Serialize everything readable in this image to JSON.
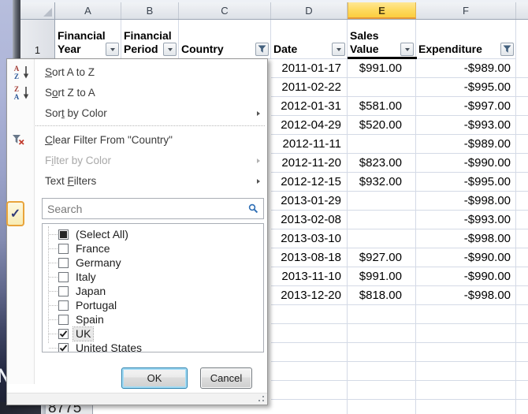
{
  "desktop_letter": "N",
  "side_check_button": {
    "glyph": "✓"
  },
  "sheet": {
    "column_letters": [
      "A",
      "B",
      "C",
      "D",
      "E",
      "F"
    ],
    "selected_column": "E",
    "row1_number": "1",
    "background_row_number": "8775",
    "headers": [
      {
        "col": "A",
        "label_lines": [
          "Financial",
          "Year"
        ],
        "filter": "dropdown"
      },
      {
        "col": "B",
        "label_lines": [
          "Financial",
          "Period"
        ],
        "filter": "dropdown"
      },
      {
        "col": "C",
        "label_lines": [
          "Country"
        ],
        "filter": "filtered"
      },
      {
        "col": "D",
        "label_lines": [
          "Date"
        ],
        "filter": "dropdown"
      },
      {
        "col": "E",
        "label_lines": [
          "Sales",
          "Value"
        ],
        "filter": "dropdown"
      },
      {
        "col": "F",
        "label_lines": [
          "Expenditure"
        ],
        "filter": "filtered"
      }
    ],
    "rows": [
      {
        "date": "2011-01-17",
        "sales": "$991.00",
        "expenditure": "-$989.00"
      },
      {
        "date": "2011-02-22",
        "sales": "",
        "expenditure": "-$995.00"
      },
      {
        "date": "2012-01-31",
        "sales": "$581.00",
        "expenditure": "-$997.00"
      },
      {
        "date": "2012-04-29",
        "sales": "$520.00",
        "expenditure": "-$993.00"
      },
      {
        "date": "2012-11-11",
        "sales": "",
        "expenditure": "-$989.00"
      },
      {
        "date": "2012-11-20",
        "sales": "$823.00",
        "expenditure": "-$990.00"
      },
      {
        "date": "2012-12-15",
        "sales": "$932.00",
        "expenditure": "-$995.00"
      },
      {
        "date": "2013-01-29",
        "sales": "",
        "expenditure": "-$998.00"
      },
      {
        "date": "2013-02-08",
        "sales": "",
        "expenditure": "-$993.00"
      },
      {
        "date": "2013-03-10",
        "sales": "",
        "expenditure": "-$998.00"
      },
      {
        "date": "2013-08-18",
        "sales": "$927.00",
        "expenditure": "-$990.00"
      },
      {
        "date": "2013-11-10",
        "sales": "$991.00",
        "expenditure": "-$990.00"
      },
      {
        "date": "2013-12-20",
        "sales": "$818.00",
        "expenditure": "-$998.00"
      }
    ]
  },
  "filter_menu": {
    "items": [
      {
        "id": "sort-a-to-z",
        "pre": "",
        "key": "S",
        "post": "ort A to Z",
        "icon": "sort-az",
        "enabled": true,
        "submenu": false
      },
      {
        "id": "sort-z-to-a",
        "pre": "S",
        "key": "o",
        "post": "rt Z to A",
        "icon": "sort-za",
        "enabled": true,
        "submenu": false
      },
      {
        "id": "sort-by-color",
        "pre": "Sor",
        "key": "t",
        "post": " by Color",
        "icon": null,
        "enabled": true,
        "submenu": true
      },
      {
        "id": "clear-filter",
        "pre": "",
        "key": "C",
        "post": "lear Filter From \"Country\"",
        "icon": "clear-filter",
        "enabled": true,
        "submenu": false
      },
      {
        "id": "filter-by-color",
        "pre": "F",
        "key": "i",
        "post": "lter by Color",
        "icon": null,
        "enabled": false,
        "submenu": true
      },
      {
        "id": "text-filters",
        "pre": "Text ",
        "key": "F",
        "post": "ilters",
        "icon": null,
        "enabled": true,
        "submenu": true
      }
    ],
    "search_placeholder": "Search",
    "values": [
      {
        "label": "(Select All)",
        "state": "indeterminate",
        "focused": false
      },
      {
        "label": "France",
        "state": "unchecked",
        "focused": false
      },
      {
        "label": "Germany",
        "state": "unchecked",
        "focused": false
      },
      {
        "label": "Italy",
        "state": "unchecked",
        "focused": false
      },
      {
        "label": "Japan",
        "state": "unchecked",
        "focused": false
      },
      {
        "label": "Portugal",
        "state": "unchecked",
        "focused": false
      },
      {
        "label": "Spain",
        "state": "unchecked",
        "focused": false
      },
      {
        "label": "UK",
        "state": "checked",
        "focused": true
      },
      {
        "label": "United States",
        "state": "checked",
        "focused": false
      }
    ],
    "ok_label": "OK",
    "cancel_label": "Cancel"
  },
  "colors": {
    "selected_header": "#fcce3f",
    "gridline": "#d4dae6",
    "menu_border": "#979797",
    "default_button_border": "#2a81ad",
    "check_button_border": "#e9a43b"
  }
}
